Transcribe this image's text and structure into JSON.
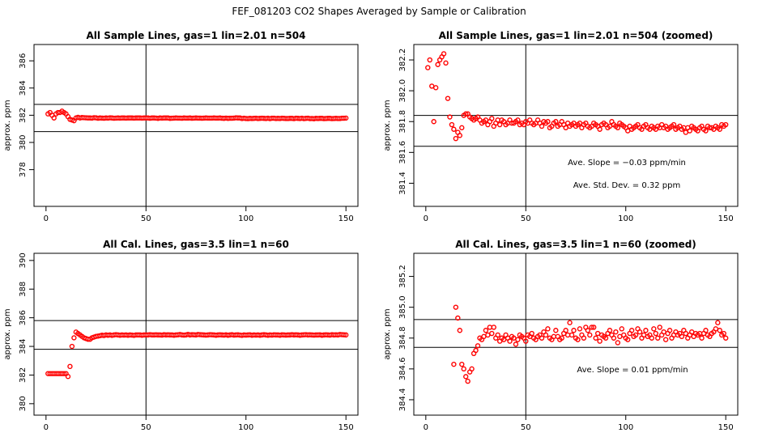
{
  "main_title": "FEF_081203  CO2 Shapes Averaged by Sample or Calibration",
  "colors": {
    "points": "#ff0000",
    "lines": "#000000",
    "background": "#ffffff"
  },
  "chart_data": [
    {
      "type": "scatter",
      "title": "All Sample Lines, gas=1 lin=2.01 n=504",
      "ylabel": "approx. ppm",
      "xlim": [
        -6,
        156
      ],
      "ylim": [
        375.3,
        387.2
      ],
      "xticks": [
        0,
        50,
        100,
        150
      ],
      "xtick_labels": [
        "0",
        "50",
        "100",
        "150"
      ],
      "yticks": [
        378,
        380,
        382,
        384,
        386
      ],
      "ytick_labels": [
        "378",
        "380",
        "382",
        "384",
        "386"
      ],
      "vline": 50,
      "hlines": [
        380.8,
        382.8
      ],
      "point_color": "#ff0000",
      "annotations": [],
      "x": [
        1,
        2,
        3,
        4,
        5,
        6,
        7,
        8,
        9,
        10,
        11,
        12,
        13,
        14,
        15,
        16,
        17,
        18,
        19,
        20,
        21,
        22,
        23,
        24,
        25,
        26,
        27,
        28,
        29,
        30,
        31,
        32,
        33,
        34,
        35,
        36,
        37,
        38,
        39,
        40,
        41,
        42,
        43,
        44,
        45,
        46,
        47,
        48,
        49,
        50,
        51,
        52,
        53,
        54,
        55,
        56,
        57,
        58,
        59,
        60,
        61,
        62,
        63,
        64,
        65,
        66,
        67,
        68,
        69,
        70,
        71,
        72,
        73,
        74,
        75,
        76,
        77,
        78,
        79,
        80,
        81,
        82,
        83,
        84,
        85,
        86,
        87,
        88,
        89,
        90,
        91,
        92,
        93,
        94,
        95,
        96,
        97,
        98,
        99,
        100,
        101,
        102,
        103,
        104,
        105,
        106,
        107,
        108,
        109,
        110,
        111,
        112,
        113,
        114,
        115,
        116,
        117,
        118,
        119,
        120,
        121,
        122,
        123,
        124,
        125,
        126,
        127,
        128,
        129,
        130,
        131,
        132,
        133,
        134,
        135,
        136,
        137,
        138,
        139,
        140,
        141,
        142,
        143,
        144,
        145,
        146,
        147,
        148,
        149,
        150
      ],
      "y": [
        382.1,
        382.2,
        382.0,
        381.8,
        382.1,
        382.2,
        382.2,
        382.3,
        382.2,
        382.1,
        381.9,
        381.7,
        381.65,
        381.6,
        381.8,
        381.85,
        381.8,
        381.83,
        381.82,
        381.81,
        381.8,
        381.8,
        381.79,
        381.82,
        381.81,
        381.78,
        381.8,
        381.79,
        381.78,
        381.8,
        381.79,
        381.81,
        381.8,
        381.78,
        381.79,
        381.8,
        381.79,
        381.8,
        381.8,
        381.79,
        381.8,
        381.8,
        381.8,
        381.79,
        381.8,
        381.8,
        381.8,
        381.79,
        381.8,
        381.8,
        381.8,
        381.78,
        381.8,
        381.8,
        381.79,
        381.77,
        381.8,
        381.79,
        381.8,
        381.8,
        381.8,
        381.77,
        381.78,
        381.79,
        381.8,
        381.79,
        381.79,
        381.78,
        381.8,
        381.79,
        381.79,
        381.8,
        381.78,
        381.79,
        381.8,
        381.79,
        381.79,
        381.78,
        381.79,
        381.8,
        381.79,
        381.79,
        381.79,
        381.8,
        381.79,
        381.79,
        381.8,
        381.78,
        381.77,
        381.79,
        381.77,
        381.78,
        381.78,
        381.79,
        381.81,
        381.8,
        381.8,
        381.76,
        381.78,
        381.76,
        381.75,
        381.77,
        381.76,
        381.77,
        381.78,
        381.76,
        381.77,
        381.78,
        381.77,
        381.76,
        381.78,
        381.75,
        381.78,
        381.78,
        381.76,
        381.77,
        381.76,
        381.78,
        381.77,
        381.76,
        381.76,
        381.77,
        381.77,
        381.75,
        381.78,
        381.77,
        381.76,
        381.78,
        381.75,
        381.77,
        381.78,
        381.75,
        381.76,
        381.74,
        381.77,
        381.76,
        381.77,
        381.77,
        381.75,
        381.76,
        381.77,
        381.77,
        381.75,
        381.76,
        381.77,
        381.76,
        381.76,
        381.78,
        381.78,
        381.79
      ]
    },
    {
      "type": "scatter",
      "title": "All Sample Lines, gas=1 lin=2.01 n=504 (zoomed)",
      "ylabel": "approx. ppm",
      "xlim": [
        -6,
        156
      ],
      "ylim": [
        381.25,
        382.3
      ],
      "xticks": [
        0,
        50,
        100,
        150
      ],
      "xtick_labels": [
        "0",
        "50",
        "100",
        "150"
      ],
      "yticks": [
        381.4,
        381.6,
        381.8,
        382.0,
        382.2
      ],
      "ytick_labels": [
        "381.4",
        "381.6",
        "381.8",
        "382.0",
        "382.2"
      ],
      "vline": 50,
      "hlines": [
        381.64,
        381.84
      ],
      "point_color": "#ff0000",
      "annotations": [
        "Ave. Slope =  −0.03  ppm/min",
        "Ave. Std. Dev. =  0.32  ppm"
      ],
      "x": [
        1,
        2,
        3,
        4,
        5,
        6,
        7,
        8,
        9,
        10,
        11,
        12,
        13,
        14,
        15,
        16,
        17,
        18,
        19,
        20,
        21,
        22,
        23,
        24,
        25,
        26,
        27,
        28,
        29,
        30,
        31,
        32,
        33,
        34,
        35,
        36,
        37,
        38,
        39,
        40,
        41,
        42,
        43,
        44,
        45,
        46,
        47,
        48,
        49,
        50,
        51,
        52,
        53,
        54,
        55,
        56,
        57,
        58,
        59,
        60,
        61,
        62,
        63,
        64,
        65,
        66,
        67,
        68,
        69,
        70,
        71,
        72,
        73,
        74,
        75,
        76,
        77,
        78,
        79,
        80,
        81,
        82,
        83,
        84,
        85,
        86,
        87,
        88,
        89,
        90,
        91,
        92,
        93,
        94,
        95,
        96,
        97,
        98,
        99,
        100,
        101,
        102,
        103,
        104,
        105,
        106,
        107,
        108,
        109,
        110,
        111,
        112,
        113,
        114,
        115,
        116,
        117,
        118,
        119,
        120,
        121,
        122,
        123,
        124,
        125,
        126,
        127,
        128,
        129,
        130,
        131,
        132,
        133,
        134,
        135,
        136,
        137,
        138,
        139,
        140,
        141,
        142,
        143,
        144,
        145,
        146,
        147,
        148,
        149,
        150
      ],
      "y": [
        382.15,
        382.2,
        382.03,
        381.8,
        382.02,
        382.17,
        382.2,
        382.22,
        382.24,
        382.18,
        381.95,
        381.83,
        381.78,
        381.75,
        381.69,
        381.73,
        381.71,
        381.76,
        381.84,
        381.85,
        381.85,
        381.83,
        381.82,
        381.81,
        381.82,
        381.83,
        381.81,
        381.79,
        381.8,
        381.81,
        381.78,
        381.8,
        381.82,
        381.77,
        381.79,
        381.81,
        381.78,
        381.81,
        381.8,
        381.78,
        381.79,
        381.81,
        381.79,
        381.79,
        381.8,
        381.81,
        381.78,
        381.79,
        381.78,
        381.8,
        381.79,
        381.81,
        381.79,
        381.78,
        381.79,
        381.81,
        381.79,
        381.77,
        381.8,
        381.79,
        381.8,
        381.76,
        381.77,
        381.79,
        381.8,
        381.77,
        381.78,
        381.8,
        381.78,
        381.76,
        381.79,
        381.77,
        381.78,
        381.79,
        381.77,
        381.78,
        381.79,
        381.76,
        381.78,
        381.79,
        381.77,
        381.76,
        381.77,
        381.79,
        381.78,
        381.77,
        381.75,
        381.78,
        381.79,
        381.78,
        381.76,
        381.77,
        381.8,
        381.78,
        381.77,
        381.76,
        381.79,
        381.78,
        381.77,
        381.76,
        381.74,
        381.77,
        381.75,
        381.76,
        381.77,
        381.78,
        381.76,
        381.75,
        381.77,
        381.78,
        381.76,
        381.75,
        381.77,
        381.76,
        381.75,
        381.77,
        381.76,
        381.78,
        381.76,
        381.77,
        381.75,
        381.76,
        381.77,
        381.78,
        381.75,
        381.76,
        381.77,
        381.75,
        381.76,
        381.73,
        381.76,
        381.74,
        381.77,
        381.76,
        381.75,
        381.74,
        381.76,
        381.77,
        381.75,
        381.74,
        381.77,
        381.76,
        381.76,
        381.75,
        381.77,
        381.76,
        381.75,
        381.78,
        381.77,
        381.78
      ]
    },
    {
      "type": "scatter",
      "title": "All Cal. Lines, gas=3.5 lin=1 n=60",
      "ylabel": "approx. ppm",
      "xlim": [
        -6,
        156
      ],
      "ylim": [
        379.2,
        390.5
      ],
      "xticks": [
        0,
        50,
        100,
        150
      ],
      "xtick_labels": [
        "0",
        "50",
        "100",
        "150"
      ],
      "yticks": [
        380,
        382,
        384,
        386,
        388,
        390
      ],
      "ytick_labels": [
        "380",
        "382",
        "384",
        "386",
        "388",
        "390"
      ],
      "vline": 50,
      "hlines": [
        383.8,
        385.8
      ],
      "point_color": "#ff0000",
      "annotations": [],
      "x": [
        1,
        2,
        3,
        4,
        5,
        6,
        7,
        8,
        9,
        10,
        11,
        12,
        13,
        14,
        15,
        16,
        17,
        18,
        19,
        20,
        21,
        22,
        23,
        24,
        25,
        26,
        27,
        28,
        29,
        30,
        31,
        32,
        33,
        34,
        35,
        36,
        37,
        38,
        39,
        40,
        41,
        42,
        43,
        44,
        45,
        46,
        47,
        48,
        49,
        50,
        51,
        52,
        53,
        54,
        55,
        56,
        57,
        58,
        59,
        60,
        61,
        62,
        63,
        64,
        65,
        66,
        67,
        68,
        69,
        70,
        71,
        72,
        73,
        74,
        75,
        76,
        77,
        78,
        79,
        80,
        81,
        82,
        83,
        84,
        85,
        86,
        87,
        88,
        89,
        90,
        91,
        92,
        93,
        94,
        95,
        96,
        97,
        98,
        99,
        100,
        101,
        102,
        103,
        104,
        105,
        106,
        107,
        108,
        109,
        110,
        111,
        112,
        113,
        114,
        115,
        116,
        117,
        118,
        119,
        120,
        121,
        122,
        123,
        124,
        125,
        126,
        127,
        128,
        129,
        130,
        131,
        132,
        133,
        134,
        135,
        136,
        137,
        138,
        139,
        140,
        141,
        142,
        143,
        144,
        145,
        146,
        147,
        148,
        149,
        150
      ],
      "y": [
        382.1,
        382.1,
        382.1,
        382.1,
        382.1,
        382.1,
        382.1,
        382.1,
        382.1,
        382.1,
        381.9,
        382.6,
        384.0,
        384.6,
        385.0,
        384.9,
        384.8,
        384.7,
        384.6,
        384.55,
        384.5,
        384.5,
        384.6,
        384.65,
        384.7,
        384.72,
        384.75,
        384.78,
        384.76,
        384.8,
        384.78,
        384.8,
        384.77,
        384.8,
        384.82,
        384.8,
        384.78,
        384.8,
        384.79,
        384.8,
        384.78,
        384.8,
        384.79,
        384.77,
        384.8,
        384.8,
        384.8,
        384.78,
        384.8,
        384.8,
        384.8,
        384.82,
        384.8,
        384.8,
        384.81,
        384.8,
        384.8,
        384.79,
        384.82,
        384.8,
        384.81,
        384.8,
        384.8,
        384.78,
        384.8,
        384.81,
        384.83,
        384.8,
        384.79,
        384.8,
        384.84,
        384.8,
        384.82,
        384.81,
        384.8,
        384.83,
        384.82,
        384.81,
        384.8,
        384.79,
        384.8,
        384.82,
        384.81,
        384.8,
        384.78,
        384.8,
        384.81,
        384.8,
        384.79,
        384.81,
        384.78,
        384.8,
        384.82,
        384.79,
        384.8,
        384.81,
        384.79,
        384.77,
        384.8,
        384.79,
        384.8,
        384.81,
        384.78,
        384.8,
        384.79,
        384.8,
        384.78,
        384.8,
        384.82,
        384.8,
        384.78,
        384.8,
        384.79,
        384.81,
        384.8,
        384.8,
        384.78,
        384.81,
        384.8,
        384.79,
        384.8,
        384.8,
        384.82,
        384.8,
        384.81,
        384.8,
        384.78,
        384.8,
        384.81,
        384.82,
        384.8,
        384.81,
        384.8,
        384.79,
        384.8,
        384.8,
        384.81,
        384.78,
        384.8,
        384.81,
        384.8,
        384.79,
        384.82,
        384.8,
        384.81,
        384.8,
        384.83,
        384.82,
        384.81,
        384.8
      ]
    },
    {
      "type": "scatter",
      "title": "All Cal. Lines, gas=3.5 lin=1 n=60 (zoomed)",
      "ylabel": "approx. ppm",
      "xlim": [
        -6,
        156
      ],
      "ylim": [
        384.3,
        385.35
      ],
      "xticks": [
        0,
        50,
        100,
        150
      ],
      "xtick_labels": [
        "0",
        "50",
        "100",
        "150"
      ],
      "yticks": [
        384.4,
        384.6,
        384.8,
        385.0,
        385.2
      ],
      "ytick_labels": [
        "384.4",
        "384.6",
        "384.8",
        "385.0",
        "385.2"
      ],
      "vline": 50,
      "hlines": [
        384.74,
        384.92
      ],
      "point_color": "#ff0000",
      "annotations": [
        "Ave. Slope =  0.01  ppm/min"
      ],
      "x": [
        14,
        15,
        16,
        17,
        18,
        19,
        20,
        21,
        22,
        23,
        24,
        25,
        26,
        27,
        28,
        29,
        30,
        31,
        32,
        33,
        34,
        35,
        36,
        37,
        38,
        39,
        40,
        41,
        42,
        43,
        44,
        45,
        46,
        47,
        48,
        49,
        50,
        51,
        52,
        53,
        54,
        55,
        56,
        57,
        58,
        59,
        60,
        61,
        62,
        63,
        64,
        65,
        66,
        67,
        68,
        69,
        70,
        71,
        72,
        73,
        74,
        75,
        76,
        77,
        78,
        79,
        80,
        81,
        82,
        83,
        84,
        85,
        86,
        87,
        88,
        89,
        90,
        91,
        92,
        93,
        94,
        95,
        96,
        97,
        98,
        99,
        100,
        101,
        102,
        103,
        104,
        105,
        106,
        107,
        108,
        109,
        110,
        111,
        112,
        113,
        114,
        115,
        116,
        117,
        118,
        119,
        120,
        121,
        122,
        123,
        124,
        125,
        126,
        127,
        128,
        129,
        130,
        131,
        132,
        133,
        134,
        135,
        136,
        137,
        138,
        139,
        140,
        141,
        142,
        143,
        144,
        145,
        146,
        147,
        148,
        149,
        150
      ],
      "y": [
        384.63,
        385.0,
        384.93,
        384.85,
        384.63,
        384.6,
        384.55,
        384.52,
        384.58,
        384.6,
        384.7,
        384.72,
        384.75,
        384.8,
        384.79,
        384.81,
        384.85,
        384.82,
        384.87,
        384.83,
        384.87,
        384.8,
        384.82,
        384.78,
        384.8,
        384.79,
        384.82,
        384.8,
        384.78,
        384.81,
        384.8,
        384.76,
        384.79,
        384.82,
        384.81,
        384.8,
        384.78,
        384.82,
        384.81,
        384.83,
        384.8,
        384.79,
        384.81,
        384.82,
        384.8,
        384.84,
        384.82,
        384.86,
        384.8,
        384.79,
        384.81,
        384.85,
        384.81,
        384.79,
        384.8,
        384.83,
        384.85,
        384.82,
        384.9,
        384.82,
        384.85,
        384.8,
        384.79,
        384.86,
        384.82,
        384.8,
        384.87,
        384.85,
        384.82,
        384.87,
        384.87,
        384.8,
        384.83,
        384.78,
        384.82,
        384.81,
        384.8,
        384.83,
        384.85,
        384.82,
        384.8,
        384.84,
        384.77,
        384.81,
        384.86,
        384.82,
        384.8,
        384.79,
        384.83,
        384.85,
        384.81,
        384.82,
        384.86,
        384.84,
        384.8,
        384.82,
        384.85,
        384.81,
        384.82,
        384.8,
        384.86,
        384.83,
        384.8,
        384.87,
        384.82,
        384.84,
        384.79,
        384.83,
        384.85,
        384.8,
        384.82,
        384.84,
        384.82,
        384.83,
        384.81,
        384.85,
        384.83,
        384.8,
        384.82,
        384.84,
        384.81,
        384.83,
        384.82,
        384.83,
        384.8,
        384.83,
        384.85,
        384.82,
        384.81,
        384.83,
        384.84,
        384.86,
        384.9,
        384.85,
        384.82,
        384.83,
        384.8
      ]
    }
  ]
}
